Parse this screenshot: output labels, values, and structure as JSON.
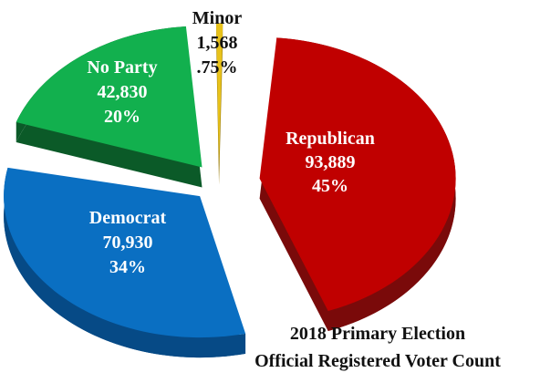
{
  "chart_data": {
    "type": "pie",
    "title_line1": "2018 Primary Election",
    "title_line2": "Official Registered Voter Count",
    "slices": [
      {
        "name": "Republican",
        "count": "93,889",
        "percent": "45%",
        "value": 93889,
        "color": "#c00000",
        "side": "#7a0a0a"
      },
      {
        "name": "Democrat",
        "count": "70,930",
        "percent": "34%",
        "value": 70930,
        "color": "#0a6fc2",
        "side": "#064a86"
      },
      {
        "name": "No Party",
        "count": "42,830",
        "percent": "20%",
        "value": 42830,
        "color": "#12b04e",
        "side": "#0b5a28"
      },
      {
        "name": "Minor",
        "count": "1,568",
        "percent": ".75%",
        "value": 1568,
        "color": "#e8c21a",
        "side": "#9a7c0a"
      }
    ]
  }
}
